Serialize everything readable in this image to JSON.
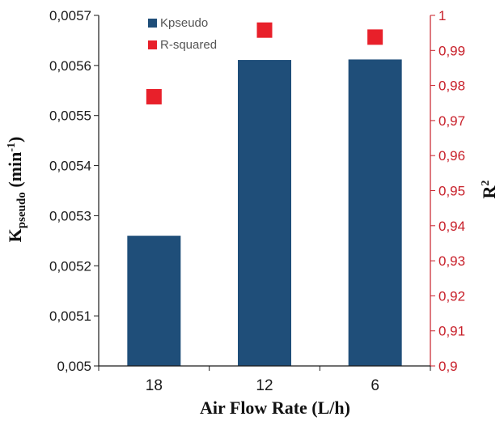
{
  "chart_data": {
    "type": "bar",
    "categories": [
      "18",
      "12",
      "6"
    ],
    "series": [
      {
        "name": "Kpseudo",
        "kind": "bar",
        "axis": "left",
        "color": "#1f4e79",
        "values": [
          0.00526,
          0.005611,
          0.005612
        ]
      },
      {
        "name": "R-squared",
        "kind": "scatter",
        "axis": "right",
        "color": "#e8202a",
        "values": [
          0.9768,
          0.9958,
          0.9938
        ]
      }
    ],
    "xlabel": "Air Flow Rate (L/h)",
    "ylabel": {
      "main": "K",
      "sub": "pseudo",
      "unit_pre": " (min",
      "unit_sup": "-1",
      "unit_post": ")"
    },
    "y2label": {
      "main": "R",
      "sup": "2"
    },
    "ylim": [
      0.005,
      0.0057
    ],
    "y2lim": [
      0.9,
      1
    ],
    "yticks": [
      "0,005",
      "0,0051",
      "0,0052",
      "0,0053",
      "0,0054",
      "0,0055",
      "0,0056",
      "0,0057"
    ],
    "y2ticks": [
      "0,9",
      "0,91",
      "0,92",
      "0,93",
      "0,94",
      "0,95",
      "0,96",
      "0,97",
      "0,98",
      "0,99",
      "1"
    ],
    "legend": {
      "placement": "top-left",
      "entries": [
        "Kpseudo",
        "R-squared"
      ]
    },
    "grid": false,
    "colors": {
      "axis_left": "#1a1a1a",
      "axis_right": "#c8202a"
    }
  }
}
